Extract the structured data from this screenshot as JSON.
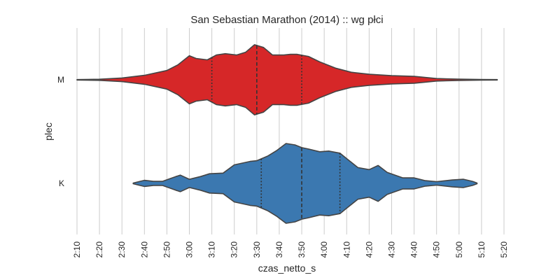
{
  "chart_data": {
    "type": "violin",
    "title": "San Sebastian Marathon (2014) :: wg płci",
    "xlabel": "czas_netto_s",
    "ylabel": "plec",
    "x_unit": "h:mm",
    "xlim": [
      "2:10",
      "5:20"
    ],
    "x_ticks": [
      "2:10",
      "2:20",
      "2:30",
      "2:40",
      "2:50",
      "3:00",
      "3:10",
      "3:20",
      "3:30",
      "3:40",
      "3:50",
      "4:00",
      "4:10",
      "4:20",
      "4:30",
      "4:40",
      "4:50",
      "5:00",
      "5:10",
      "5:20"
    ],
    "grid": true,
    "categories": [
      "M",
      "K"
    ],
    "series": [
      {
        "category": "M",
        "color": "#d62728",
        "min": "2:10",
        "max": "5:17",
        "quartiles": [
          "3:10",
          "3:30",
          "3:50"
        ],
        "density": [
          [
            "2:10",
            0.3
          ],
          [
            "2:20",
            0.8
          ],
          [
            "2:30",
            2.6
          ],
          [
            "2:40",
            6.5
          ],
          [
            "2:50",
            13.5
          ],
          [
            "2:55",
            22
          ],
          [
            "3:00",
            35
          ],
          [
            "3:03",
            31
          ],
          [
            "3:08",
            29
          ],
          [
            "3:12",
            36
          ],
          [
            "3:16",
            38
          ],
          [
            "3:21",
            36
          ],
          [
            "3:25",
            40
          ],
          [
            "3:29",
            51
          ],
          [
            "3:33",
            47
          ],
          [
            "3:37",
            36
          ],
          [
            "3:42",
            36
          ],
          [
            "3:45",
            37
          ],
          [
            "3:48",
            37
          ],
          [
            "3:53",
            34
          ],
          [
            "3:58",
            26
          ],
          [
            "4:05",
            17
          ],
          [
            "4:12",
            11
          ],
          [
            "4:20",
            8
          ],
          [
            "4:30",
            6
          ],
          [
            "4:40",
            5
          ],
          [
            "4:50",
            1.8
          ],
          [
            "5:00",
            0.9
          ],
          [
            "5:10",
            0.5
          ],
          [
            "5:17",
            0.3
          ]
        ]
      },
      {
        "category": "K",
        "color": "#3b78b0",
        "min": "2:35",
        "max": "5:08",
        "quartiles": [
          "3:32",
          "3:50",
          "4:07"
        ],
        "density": [
          [
            "2:35",
            0.5
          ],
          [
            "2:38",
            3
          ],
          [
            "2:40",
            4.5
          ],
          [
            "2:44",
            3
          ],
          [
            "2:48",
            3
          ],
          [
            "2:54",
            10
          ],
          [
            "2:56",
            12
          ],
          [
            "3:00",
            6
          ],
          [
            "3:05",
            10
          ],
          [
            "3:09",
            14
          ],
          [
            "3:15",
            15
          ],
          [
            "3:20",
            27
          ],
          [
            "3:27",
            32
          ],
          [
            "3:30",
            33
          ],
          [
            "3:35",
            40
          ],
          [
            "3:39",
            48
          ],
          [
            "3:43",
            58
          ],
          [
            "3:47",
            56
          ],
          [
            "3:50",
            52
          ],
          [
            "3:53",
            50
          ],
          [
            "3:58",
            46
          ],
          [
            "4:02",
            47
          ],
          [
            "4:07",
            44
          ],
          [
            "4:10",
            36
          ],
          [
            "4:15",
            23
          ],
          [
            "4:20",
            20
          ],
          [
            "4:24",
            26
          ],
          [
            "4:28",
            16
          ],
          [
            "4:35",
            8
          ],
          [
            "4:40",
            8
          ],
          [
            "4:45",
            4
          ],
          [
            "4:50",
            2.5
          ],
          [
            "4:57",
            5
          ],
          [
            "5:02",
            6
          ],
          [
            "5:06",
            3
          ],
          [
            "5:08",
            0.5
          ]
        ]
      }
    ]
  }
}
